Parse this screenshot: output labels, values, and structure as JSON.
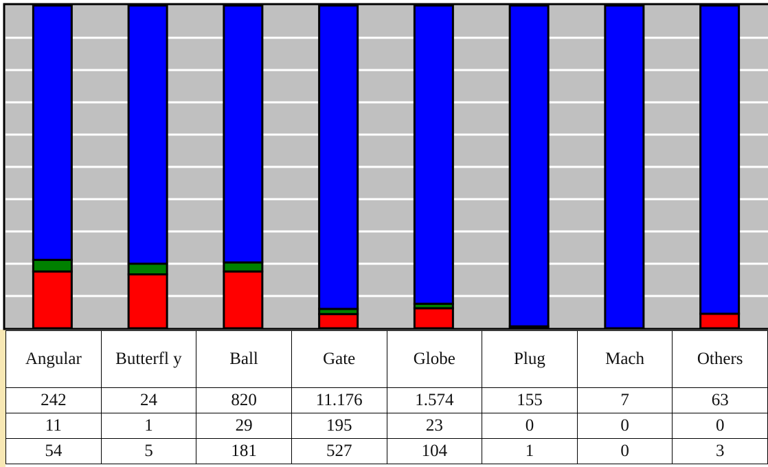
{
  "chart_data": {
    "type": "bar",
    "stacked": true,
    "grid": true,
    "categories": [
      "Angular",
      "Butterfl y",
      "Ball",
      "Gate",
      "Globe",
      "Plug",
      "Mach",
      "Others"
    ],
    "rows": [
      [
        242,
        24,
        820,
        "11.176",
        "1.574",
        155,
        7,
        63
      ],
      [
        11,
        1,
        29,
        195,
        23,
        0,
        0,
        0
      ],
      [
        54,
        5,
        181,
        527,
        104,
        1,
        0,
        3
      ]
    ],
    "series": [
      {
        "color": "#ff0000",
        "percent": [
          17.6,
          16.7,
          17.6,
          4.4,
          6.2,
          0.6,
          0,
          4.5
        ]
      },
      {
        "color": "#008000",
        "percent": [
          3.6,
          3.3,
          2.8,
          1.6,
          1.4,
          0,
          0,
          0
        ]
      },
      {
        "color": "#0000ff",
        "percent": [
          78.8,
          80.0,
          79.6,
          94.0,
          92.4,
          99.4,
          100,
          95.5
        ]
      }
    ],
    "ylim": [
      0,
      100
    ]
  }
}
